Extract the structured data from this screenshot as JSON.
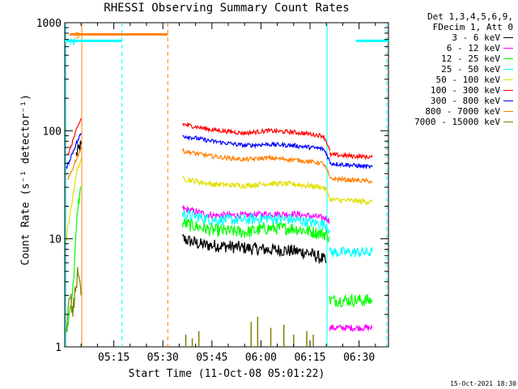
{
  "chart_data": {
    "type": "line",
    "title": "RHESSI Observing Summary Count Rates",
    "xlabel": "Start Time (11-Oct-08 05:01:22)",
    "ylabel": "Count Rate (s⁻¹ detector⁻¹)",
    "x_unit": "minutes after 05:00",
    "xlim": [
      0,
      99
    ],
    "ylim": [
      1,
      1000
    ],
    "yscale": "log",
    "x_ticks": [
      {
        "x": 15,
        "label": "05:15"
      },
      {
        "x": 30,
        "label": "05:30"
      },
      {
        "x": 45,
        "label": "05:45"
      },
      {
        "x": 60,
        "label": "06:00"
      },
      {
        "x": 75,
        "label": "06:15"
      },
      {
        "x": 90,
        "label": "06:30"
      }
    ],
    "y_ticks": [
      {
        "y": 1,
        "label": "1"
      },
      {
        "y": 10,
        "label": "10"
      },
      {
        "y": 100,
        "label": "100"
      },
      {
        "y": 1000,
        "label": "1000"
      }
    ],
    "legend": {
      "placement": "right",
      "header": [
        "Det 1,3,4,5,6,9,",
        "FDecim 1, Att 0"
      ]
    },
    "series": [
      {
        "name": "3 - 6 keV",
        "color": "#000000",
        "noise": 0.06,
        "segments": [
          [
            [
              3.5,
              60
            ],
            [
              5.0,
              75
            ]
          ],
          [
            [
              36,
              10
            ],
            [
              42,
              8.8
            ],
            [
              50,
              8.5
            ],
            [
              60,
              8.0
            ],
            [
              68,
              7.8
            ],
            [
              74,
              7.5
            ],
            [
              79,
              6.5
            ],
            [
              80,
              6.0
            ]
          ]
        ]
      },
      {
        "name": "6 - 12 keV",
        "color": "#ff00ff",
        "noise": 0.03,
        "segments": [
          [
            [
              36,
              19
            ],
            [
              45,
              16.5
            ],
            [
              55,
              16.5
            ],
            [
              62,
              17
            ],
            [
              70,
              17
            ],
            [
              80,
              15.5
            ],
            [
              81,
              14.5
            ]
          ],
          [
            [
              81,
              1.5
            ],
            [
              94,
              1.5
            ]
          ]
        ]
      },
      {
        "name": "12 - 25 keV",
        "color": "#00ff00",
        "noise": 0.06,
        "segments": [
          [
            [
              0.5,
              1.3
            ],
            [
              2.5,
              3.5
            ],
            [
              4.0,
              20
            ],
            [
              5.0,
              30
            ]
          ],
          [
            [
              36,
              14
            ],
            [
              45,
              12
            ],
            [
              55,
              11.5
            ],
            [
              62,
              12.5
            ],
            [
              70,
              12.5
            ],
            [
              80,
              11
            ],
            [
              81,
              10.5
            ]
          ],
          [
            [
              81,
              2.7
            ],
            [
              94,
              2.7
            ]
          ]
        ]
      },
      {
        "name": "25 - 50 keV",
        "color": "#00ffff",
        "noise": 0.05,
        "segments": [
          [
            [
              36,
              17
            ],
            [
              45,
              15
            ],
            [
              55,
              15
            ],
            [
              62,
              15.5
            ],
            [
              70,
              15
            ],
            [
              80,
              13.5
            ],
            [
              81,
              12
            ]
          ],
          [
            [
              81,
              7.5
            ],
            [
              94,
              7.5
            ]
          ]
        ]
      },
      {
        "name": "50 - 100 keV",
        "color": "#e0e000",
        "noise": 0.025,
        "segments": [
          [
            [
              0.5,
              10
            ],
            [
              2,
              20
            ],
            [
              3.5,
              40
            ],
            [
              5,
              55
            ]
          ],
          [
            [
              36,
              36
            ],
            [
              45,
              32
            ],
            [
              55,
              31
            ],
            [
              62,
              32.5
            ],
            [
              70,
              32
            ],
            [
              79,
              30
            ],
            [
              80,
              28
            ],
            [
              81,
              25
            ]
          ],
          [
            [
              81,
              23
            ],
            [
              94,
              22
            ]
          ]
        ]
      },
      {
        "name": "100 - 300 keV",
        "color": "#ff0000",
        "noise": 0.02,
        "segments": [
          [
            [
              1,
              60
            ],
            [
              3,
              90
            ],
            [
              5,
              130
            ]
          ],
          [
            [
              36,
              115
            ],
            [
              45,
              102
            ],
            [
              55,
              95
            ],
            [
              62,
              100
            ],
            [
              70,
              97
            ],
            [
              79,
              90
            ],
            [
              80,
              80
            ],
            [
              81,
              65
            ]
          ],
          [
            [
              81,
              60
            ],
            [
              94,
              57
            ]
          ]
        ]
      },
      {
        "name": "300 - 800 keV",
        "color": "#0000ff",
        "noise": 0.02,
        "segments": [
          [
            [
              0.5,
              45
            ],
            [
              3,
              70
            ],
            [
              5,
              95
            ]
          ],
          [
            [
              36,
              90
            ],
            [
              45,
              80
            ],
            [
              55,
              73
            ],
            [
              62,
              75
            ],
            [
              70,
              73
            ],
            [
              79,
              68
            ],
            [
              80,
              62
            ],
            [
              81,
              52
            ]
          ],
          [
            [
              81,
              50
            ],
            [
              94,
              46
            ]
          ]
        ]
      },
      {
        "name": "800 - 7000 keV",
        "color": "#ff8000",
        "noise": 0.02,
        "segments": [
          [
            [
              1,
              35
            ],
            [
              3,
              50
            ],
            [
              5,
              70
            ]
          ],
          [
            [
              36,
              65
            ],
            [
              45,
              58
            ],
            [
              55,
              54
            ],
            [
              62,
              56
            ],
            [
              70,
              54
            ],
            [
              79,
              50
            ],
            [
              80,
              44
            ],
            [
              81,
              38
            ]
          ],
          [
            [
              81,
              36
            ],
            [
              94,
              34
            ]
          ]
        ]
      },
      {
        "name": "7000 - 15000 keV",
        "color": "#808000",
        "noise": 0.1,
        "segments": [
          [
            [
              0.5,
              1.2
            ],
            [
              1.5,
              3
            ],
            [
              2.5,
              2
            ],
            [
              3.5,
              4
            ],
            [
              4.5,
              5
            ],
            [
              5,
              3
            ]
          ]
        ],
        "spikes": [
          [
            37,
            1.3
          ],
          [
            39,
            1.2
          ],
          [
            41,
            1.4
          ],
          [
            57,
            1.7
          ],
          [
            59,
            1.9
          ],
          [
            63,
            1.5
          ],
          [
            67,
            1.6
          ],
          [
            70,
            1.3
          ],
          [
            74,
            1.4
          ],
          [
            76,
            1.3
          ]
        ]
      }
    ],
    "annotations": [
      {
        "label": "S",
        "color": "#ff8000",
        "x_start": 1.5,
        "x_end": 31.5,
        "level": 780
      },
      {
        "label": "N",
        "color": "#00ffff",
        "x_start": 0,
        "x_end": 17.5,
        "level": 680
      },
      {
        "label": "",
        "color": "#00ffff",
        "x_start": 89,
        "x_end": 99,
        "level": 680
      }
    ],
    "markers": [
      {
        "x": 0.3,
        "color": "#00ffff",
        "style": "solid"
      },
      {
        "x": 5.2,
        "color": "#ff8000",
        "style": "solid"
      },
      {
        "x": 17.5,
        "color": "#00ffff",
        "style": "dashed"
      },
      {
        "x": 31.5,
        "color": "#ff8000",
        "style": "dashed"
      },
      {
        "x": 80.2,
        "color": "#00ffff",
        "style": "solid"
      },
      {
        "x": 98.5,
        "color": "#00ffff",
        "style": "dashed"
      }
    ]
  },
  "footer": {
    "timestamp": "15-Oct-2021 18:30"
  }
}
